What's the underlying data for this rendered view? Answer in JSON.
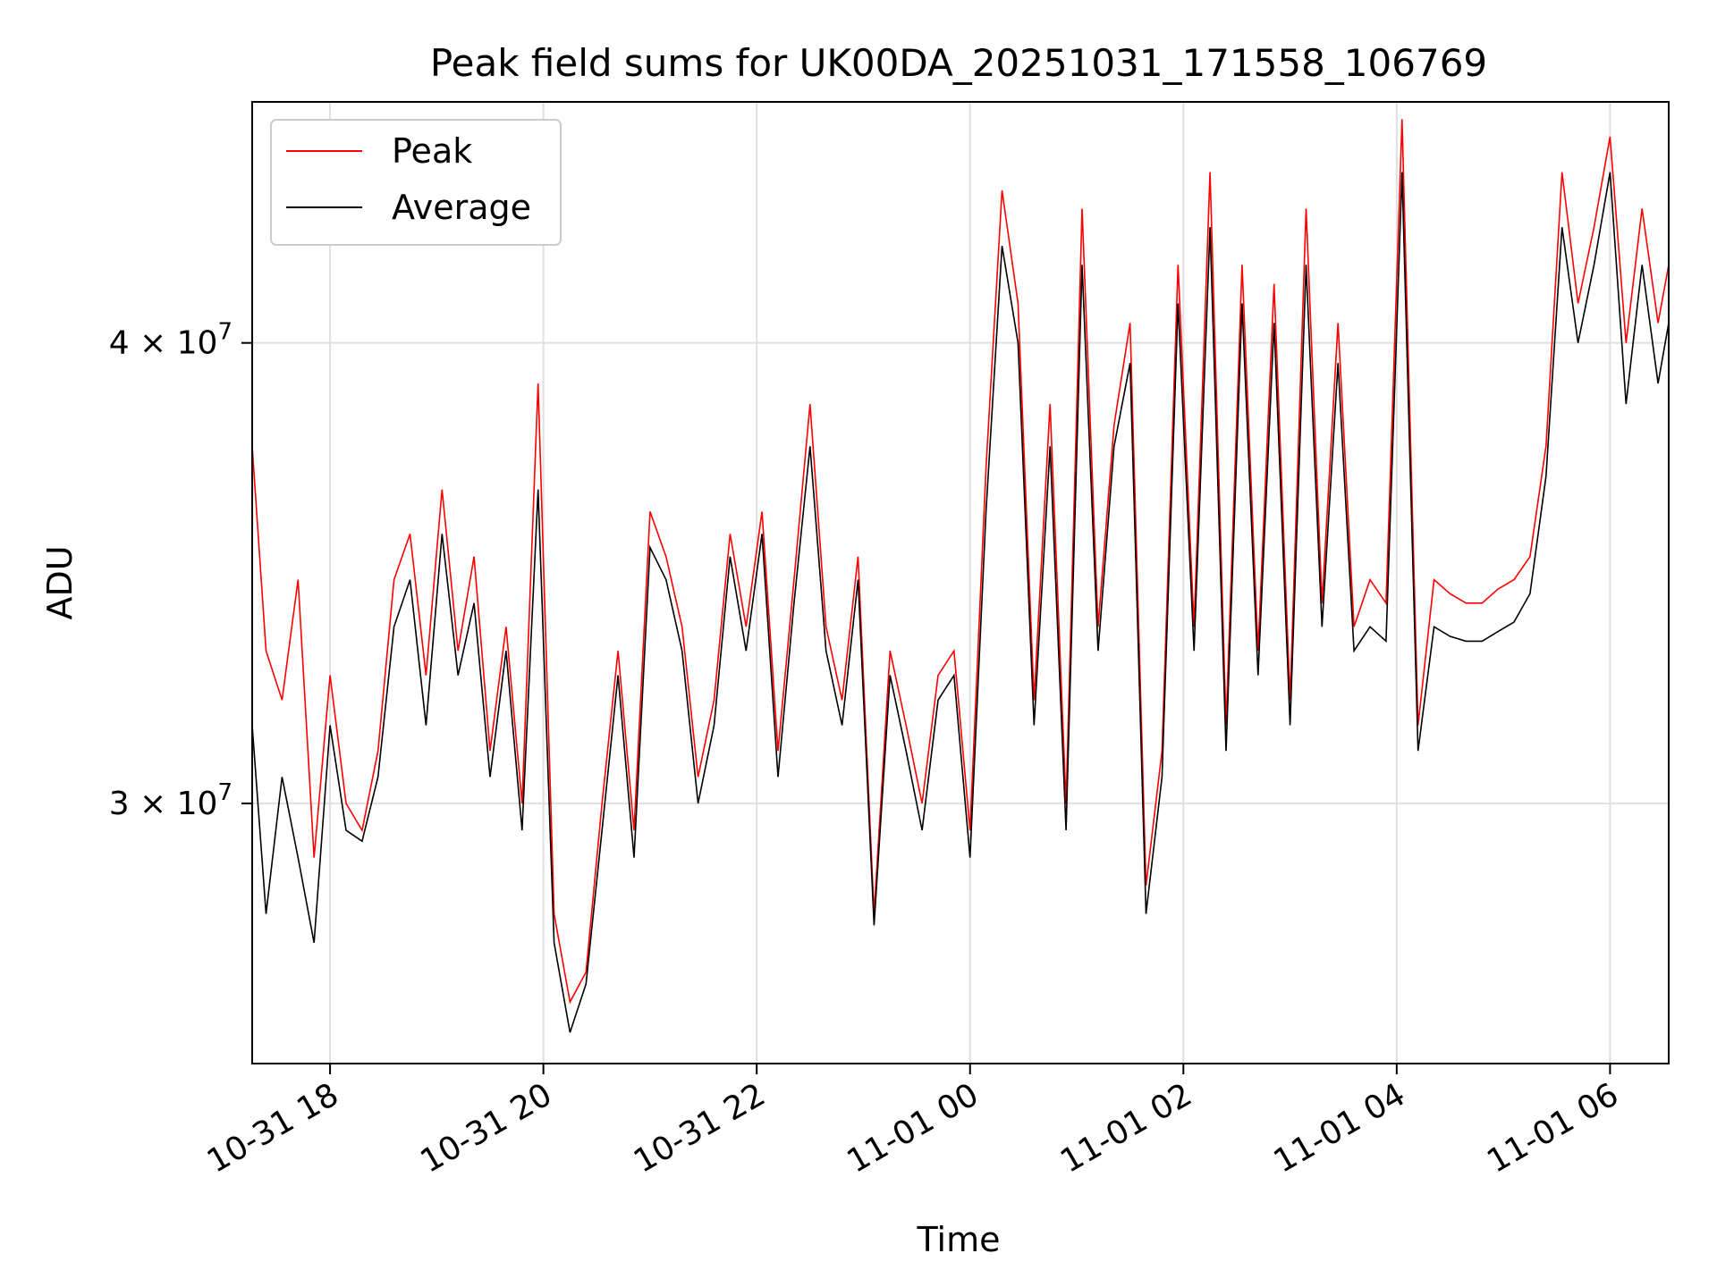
{
  "chart_data": {
    "type": "line",
    "title": "Peak field sums for UK00DA_20251031_171558_106769",
    "xlabel": "Time",
    "ylabel": "ADU",
    "yscale": "log",
    "ylim": [
      25500000,
      46500000
    ],
    "xlim_hours": [
      -0.73,
      12.55
    ],
    "grid": true,
    "legend_position": "top-left",
    "x_ticks": [
      {
        "label": "10-31 18",
        "hour": 0
      },
      {
        "label": "10-31 20",
        "hour": 2
      },
      {
        "label": "10-31 22",
        "hour": 4
      },
      {
        "label": "11-01 00",
        "hour": 6
      },
      {
        "label": "11-01 02",
        "hour": 8
      },
      {
        "label": "11-01 04",
        "hour": 10
      },
      {
        "label": "11-01 06",
        "hour": 12
      }
    ],
    "y_ticks": [
      {
        "label": "3 × 10",
        "exp": "7",
        "value": 30000000
      },
      {
        "label": "4 × 10",
        "exp": "7",
        "value": 40000000
      }
    ],
    "series": [
      {
        "name": "Peak",
        "color": "#ff0000",
        "x_hours": [
          -0.73,
          -0.6,
          -0.45,
          -0.3,
          -0.15,
          0,
          0.15,
          0.3,
          0.45,
          0.6,
          0.75,
          0.9,
          1.05,
          1.2,
          1.35,
          1.5,
          1.65,
          1.8,
          1.95,
          2.1,
          2.25,
          2.4,
          2.55,
          2.7,
          2.85,
          3.0,
          3.15,
          3.3,
          3.45,
          3.6,
          3.75,
          3.9,
          4.05,
          4.2,
          4.35,
          4.5,
          4.65,
          4.8,
          4.95,
          5.1,
          5.25,
          5.4,
          5.55,
          5.7,
          5.85,
          6.0,
          6.15,
          6.3,
          6.45,
          6.6,
          6.75,
          6.9,
          7.05,
          7.2,
          7.35,
          7.5,
          7.65,
          7.8,
          7.95,
          8.1,
          8.25,
          8.4,
          8.55,
          8.7,
          8.85,
          9.0,
          9.15,
          9.3,
          9.45,
          9.6,
          9.75,
          9.9,
          10.05,
          10.2,
          10.35,
          10.5,
          10.65,
          10.8,
          10.95,
          11.1,
          11.25,
          11.4,
          11.55,
          11.7,
          11.85,
          12.0,
          12.15,
          12.3,
          12.45,
          12.55
        ],
        "values": [
          37500000,
          33000000,
          32000000,
          34500000,
          29000000,
          32500000,
          30000000,
          29500000,
          31000000,
          34500000,
          35500000,
          32500000,
          36500000,
          33000000,
          35000000,
          31000000,
          33500000,
          30000000,
          39000000,
          28000000,
          26500000,
          27000000,
          30000000,
          33000000,
          29500000,
          36000000,
          35000000,
          33500000,
          30500000,
          32000000,
          35500000,
          33500000,
          36000000,
          31000000,
          34500000,
          38500000,
          33500000,
          32000000,
          35000000,
          28000000,
          33000000,
          31500000,
          30000000,
          32500000,
          33000000,
          29500000,
          37000000,
          44000000,
          41000000,
          32000000,
          38500000,
          30000000,
          43500000,
          33500000,
          38000000,
          40500000,
          28500000,
          31000000,
          42000000,
          33500000,
          44500000,
          31500000,
          42000000,
          33000000,
          41500000,
          32000000,
          43500000,
          34000000,
          40500000,
          33500000,
          34500000,
          34000000,
          46000000,
          31500000,
          34500000,
          34200000,
          34000000,
          34000000,
          34300000,
          34500000,
          35000000,
          37500000,
          44500000,
          41000000,
          43000000,
          45500000,
          40000000,
          43500000,
          40500000,
          42000000
        ]
      },
      {
        "name": "Average",
        "color": "#000000",
        "x_hours": [
          -0.73,
          -0.6,
          -0.45,
          -0.3,
          -0.15,
          0,
          0.15,
          0.3,
          0.45,
          0.6,
          0.75,
          0.9,
          1.05,
          1.2,
          1.35,
          1.5,
          1.65,
          1.8,
          1.95,
          2.1,
          2.25,
          2.4,
          2.55,
          2.7,
          2.85,
          3.0,
          3.15,
          3.3,
          3.45,
          3.6,
          3.75,
          3.9,
          4.05,
          4.2,
          4.35,
          4.5,
          4.65,
          4.8,
          4.95,
          5.1,
          5.25,
          5.4,
          5.55,
          5.7,
          5.85,
          6.0,
          6.15,
          6.3,
          6.45,
          6.6,
          6.75,
          6.9,
          7.05,
          7.2,
          7.35,
          7.5,
          7.65,
          7.8,
          7.95,
          8.1,
          8.25,
          8.4,
          8.55,
          8.7,
          8.85,
          9.0,
          9.15,
          9.3,
          9.45,
          9.6,
          9.75,
          9.9,
          10.05,
          10.2,
          10.35,
          10.5,
          10.65,
          10.8,
          10.95,
          11.1,
          11.25,
          11.4,
          11.55,
          11.7,
          11.85,
          12.0,
          12.15,
          12.3,
          12.45,
          12.55
        ],
        "values": [
          31500000,
          28000000,
          30500000,
          29000000,
          27500000,
          31500000,
          29500000,
          29300000,
          30500000,
          33500000,
          34500000,
          31500000,
          35500000,
          32500000,
          34000000,
          30500000,
          33000000,
          29500000,
          36500000,
          27500000,
          26000000,
          26800000,
          29500000,
          32500000,
          29000000,
          35200000,
          34500000,
          33000000,
          30000000,
          31500000,
          35000000,
          33000000,
          35500000,
          30500000,
          34000000,
          37500000,
          33000000,
          31500000,
          34500000,
          27800000,
          32500000,
          31000000,
          29500000,
          32000000,
          32500000,
          29000000,
          36000000,
          42500000,
          40000000,
          31500000,
          37500000,
          29500000,
          42000000,
          33000000,
          37500000,
          39500000,
          28000000,
          30500000,
          41000000,
          33000000,
          43000000,
          31000000,
          41000000,
          32500000,
          40500000,
          31500000,
          42000000,
          33500000,
          39500000,
          33000000,
          33500000,
          33200000,
          44500000,
          31000000,
          33500000,
          33300000,
          33200000,
          33200000,
          33400000,
          33600000,
          34200000,
          36800000,
          43000000,
          40000000,
          42000000,
          44500000,
          38500000,
          42000000,
          39000000,
          40500000
        ]
      }
    ]
  }
}
